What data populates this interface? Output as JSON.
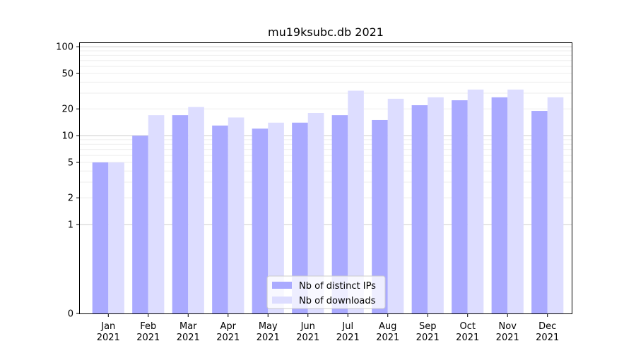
{
  "chart_data": {
    "type": "bar",
    "title": "mu19ksubc.db 2021",
    "xlabel": "",
    "ylabel": "",
    "y_scale": "symlog",
    "ylim": [
      0,
      110
    ],
    "y_ticks": [
      0,
      1,
      2,
      5,
      10,
      20,
      50,
      100
    ],
    "y_tick_labels": [
      "0",
      "1",
      "2",
      "5",
      "10",
      "20",
      "50",
      "100"
    ],
    "categories": [
      {
        "month": "Jan",
        "year": "2021"
      },
      {
        "month": "Feb",
        "year": "2021"
      },
      {
        "month": "Mar",
        "year": "2021"
      },
      {
        "month": "Apr",
        "year": "2021"
      },
      {
        "month": "May",
        "year": "2021"
      },
      {
        "month": "Jun",
        "year": "2021"
      },
      {
        "month": "Jul",
        "year": "2021"
      },
      {
        "month": "Aug",
        "year": "2021"
      },
      {
        "month": "Sep",
        "year": "2021"
      },
      {
        "month": "Oct",
        "year": "2021"
      },
      {
        "month": "Nov",
        "year": "2021"
      },
      {
        "month": "Dec",
        "year": "2021"
      }
    ],
    "series": [
      {
        "name": "Nb of distinct IPs",
        "color": "#aaaaff",
        "values": [
          5,
          10,
          17,
          13,
          12,
          14,
          17,
          15,
          22,
          25,
          27,
          19
        ]
      },
      {
        "name": "Nb of downloads",
        "color": "#ddddff",
        "values": [
          5,
          17,
          21,
          16,
          14,
          18,
          32,
          26,
          27,
          33,
          33,
          27
        ]
      }
    ],
    "grid": true,
    "legend_position": "bottom-center"
  }
}
